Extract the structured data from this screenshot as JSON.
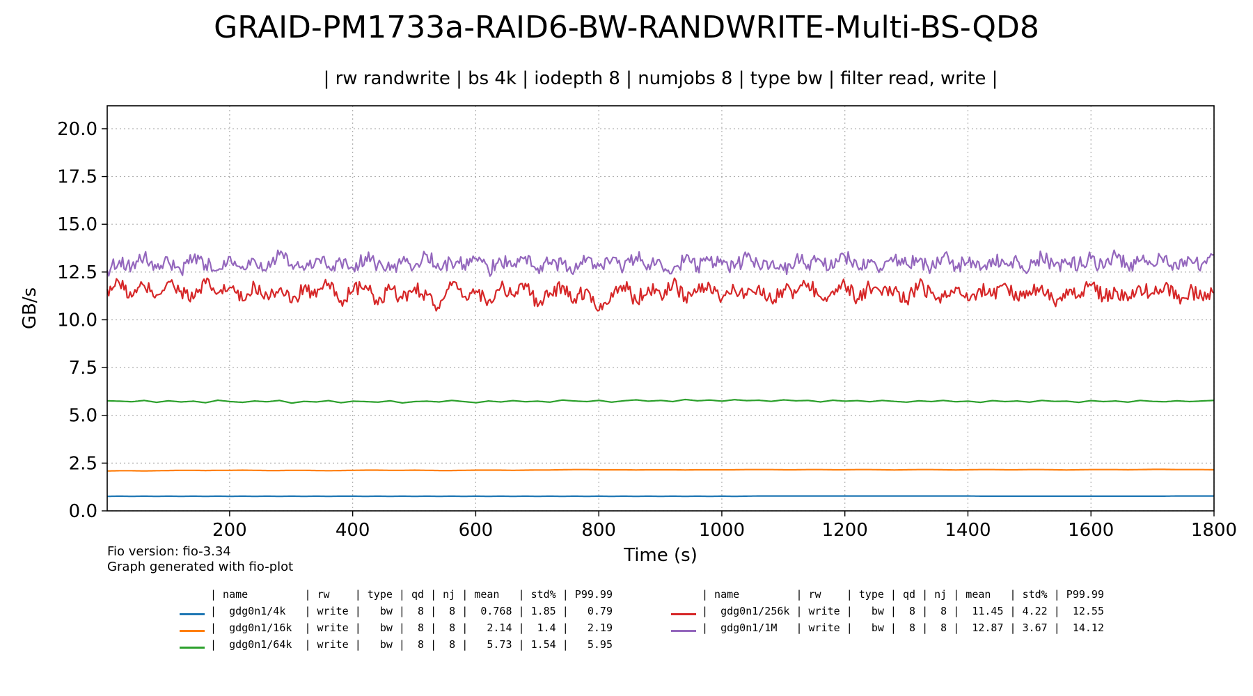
{
  "chart_data": {
    "type": "line",
    "title": "GRAID-PM1733a-RAID6-BW-RANDWRITE-Multi-BS-QD8",
    "subtitle": "| rw randwrite | bs 4k | iodepth 8 | numjobs 8 | type bw | filter read, write |",
    "xlabel": "Time (s)",
    "ylabel": "GB/s",
    "xlim": [
      1,
      1800
    ],
    "ylim": [
      0,
      21.2
    ],
    "xticks": [
      200,
      400,
      600,
      800,
      1000,
      1200,
      1400,
      1600,
      1800
    ],
    "yticks": [
      0.0,
      2.5,
      5.0,
      7.5,
      10.0,
      12.5,
      15.0,
      17.5,
      20.0
    ],
    "grid": true,
    "legend_placement": "bottom",
    "series": [
      {
        "name": "gdg0n1/4k",
        "color": "#1f77b4",
        "mean": 0.768,
        "std_pct": 1.85,
        "p9999": 0.79,
        "values_sampled_every_20s": [
          0.76,
          0.77,
          0.76,
          0.77,
          0.76,
          0.77,
          0.76,
          0.77,
          0.76,
          0.77,
          0.76,
          0.77,
          0.76,
          0.77,
          0.76,
          0.77,
          0.76,
          0.77,
          0.76,
          0.77,
          0.77,
          0.76,
          0.77,
          0.76,
          0.77,
          0.76,
          0.77,
          0.76,
          0.77,
          0.76,
          0.77,
          0.76,
          0.77,
          0.76,
          0.77,
          0.76,
          0.77,
          0.76,
          0.77,
          0.76,
          0.77,
          0.76,
          0.77,
          0.76,
          0.77,
          0.76,
          0.77,
          0.76,
          0.77,
          0.76,
          0.77,
          0.76,
          0.77,
          0.78,
          0.78,
          0.78,
          0.78,
          0.78,
          0.78,
          0.78,
          0.78,
          0.78,
          0.78,
          0.78,
          0.78,
          0.78,
          0.78,
          0.78,
          0.78,
          0.78,
          0.78,
          0.77,
          0.77,
          0.77,
          0.77,
          0.77,
          0.77,
          0.77,
          0.77,
          0.77,
          0.77,
          0.77,
          0.77,
          0.77,
          0.77,
          0.77,
          0.77,
          0.78,
          0.78,
          0.78,
          0.78
        ]
      },
      {
        "name": "gdg0n1/16k",
        "color": "#ff7f0e",
        "mean": 2.14,
        "std_pct": 1.4,
        "p9999": 2.19,
        "values_sampled_every_20s": [
          2.09,
          2.1,
          2.1,
          2.09,
          2.1,
          2.11,
          2.12,
          2.12,
          2.11,
          2.12,
          2.12,
          2.13,
          2.12,
          2.11,
          2.11,
          2.12,
          2.12,
          2.11,
          2.1,
          2.11,
          2.12,
          2.13,
          2.13,
          2.12,
          2.12,
          2.13,
          2.12,
          2.11,
          2.11,
          2.12,
          2.13,
          2.13,
          2.13,
          2.12,
          2.13,
          2.14,
          2.14,
          2.15,
          2.16,
          2.16,
          2.15,
          2.15,
          2.15,
          2.14,
          2.15,
          2.15,
          2.15,
          2.14,
          2.15,
          2.15,
          2.15,
          2.15,
          2.16,
          2.16,
          2.16,
          2.15,
          2.15,
          2.16,
          2.16,
          2.15,
          2.15,
          2.16,
          2.16,
          2.15,
          2.14,
          2.15,
          2.16,
          2.16,
          2.15,
          2.14,
          2.15,
          2.16,
          2.16,
          2.15,
          2.15,
          2.16,
          2.16,
          2.15,
          2.14,
          2.15,
          2.16,
          2.16,
          2.16,
          2.15,
          2.16,
          2.17,
          2.17,
          2.16,
          2.16,
          2.16,
          2.15
        ]
      },
      {
        "name": "gdg0n1/64k",
        "color": "#2ca02c",
        "mean": 5.73,
        "std_pct": 1.54,
        "p9999": 5.95,
        "values_sampled_every_20s": [
          5.76,
          5.74,
          5.71,
          5.78,
          5.68,
          5.76,
          5.7,
          5.74,
          5.66,
          5.79,
          5.72,
          5.68,
          5.75,
          5.71,
          5.78,
          5.64,
          5.73,
          5.7,
          5.77,
          5.66,
          5.74,
          5.72,
          5.69,
          5.76,
          5.65,
          5.72,
          5.74,
          5.7,
          5.78,
          5.72,
          5.66,
          5.75,
          5.7,
          5.77,
          5.71,
          5.74,
          5.69,
          5.8,
          5.75,
          5.72,
          5.78,
          5.69,
          5.76,
          5.81,
          5.74,
          5.78,
          5.72,
          5.83,
          5.76,
          5.8,
          5.74,
          5.82,
          5.77,
          5.79,
          5.73,
          5.81,
          5.76,
          5.78,
          5.7,
          5.79,
          5.74,
          5.77,
          5.71,
          5.78,
          5.73,
          5.69,
          5.76,
          5.72,
          5.78,
          5.71,
          5.74,
          5.68,
          5.77,
          5.72,
          5.75,
          5.69,
          5.78,
          5.73,
          5.74,
          5.68,
          5.77,
          5.72,
          5.75,
          5.69,
          5.78,
          5.73,
          5.71,
          5.76,
          5.72,
          5.75,
          5.78
        ]
      },
      {
        "name": "gdg0n1/256k",
        "color": "#d62728",
        "mean": 11.45,
        "std_pct": 4.22,
        "p9999": 12.55,
        "values_sampled_every_20s": [
          11.6,
          11.9,
          11.2,
          11.8,
          11.3,
          12.0,
          11.5,
          11.1,
          11.9,
          11.4,
          11.7,
          11.0,
          11.8,
          11.3,
          11.6,
          10.9,
          11.7,
          11.2,
          11.9,
          11.0,
          11.5,
          11.8,
          10.8,
          11.6,
          11.1,
          11.7,
          11.3,
          10.6,
          11.8,
          11.2,
          11.5,
          11.0,
          11.7,
          11.3,
          11.9,
          10.7,
          11.4,
          11.8,
          11.1,
          11.6,
          10.5,
          11.4,
          11.8,
          11.0,
          11.7,
          11.3,
          11.9,
          11.2,
          11.5,
          11.8,
          11.1,
          11.6,
          11.3,
          11.8,
          11.0,
          11.6,
          11.4,
          11.9,
          11.2,
          11.5,
          11.8,
          11.1,
          11.7,
          11.3,
          11.6,
          11.0,
          11.8,
          11.4,
          11.2,
          11.7,
          11.0,
          11.6,
          11.3,
          11.9,
          11.1,
          11.5,
          11.8,
          10.9,
          11.6,
          11.3,
          11.8,
          11.2,
          11.5,
          11.0,
          11.7,
          11.4,
          11.8,
          11.1,
          11.5,
          11.2,
          11.4
        ]
      },
      {
        "name": "gdg0n1/1M",
        "color": "#9467bd",
        "mean": 12.87,
        "std_pct": 3.67,
        "p9999": 14.12,
        "values_sampled_every_20s": [
          12.6,
          13.1,
          12.8,
          13.3,
          12.7,
          13.0,
          12.5,
          13.2,
          12.9,
          12.6,
          13.3,
          12.8,
          13.1,
          12.7,
          13.4,
          12.9,
          12.6,
          13.2,
          12.8,
          13.0,
          12.7,
          13.3,
          12.9,
          12.6,
          13.1,
          12.8,
          13.4,
          12.7,
          13.0,
          12.9,
          13.2,
          12.6,
          13.1,
          12.8,
          13.3,
          12.7,
          13.0,
          12.9,
          12.6,
          13.2,
          12.8,
          13.1,
          12.7,
          13.3,
          12.9,
          13.0,
          12.6,
          13.2,
          12.8,
          13.1,
          12.9,
          12.7,
          13.3,
          12.8,
          13.0,
          12.6,
          13.2,
          12.9,
          13.1,
          12.7,
          13.3,
          12.8,
          13.0,
          12.6,
          13.2,
          12.9,
          13.1,
          12.7,
          13.3,
          12.8,
          13.0,
          12.6,
          13.2,
          12.9,
          13.1,
          12.7,
          13.3,
          12.8,
          13.0,
          12.9,
          13.2,
          12.7,
          13.4,
          12.8,
          13.1,
          12.9,
          13.3,
          12.7,
          13.2,
          12.9,
          13.4
        ]
      }
    ]
  },
  "footnotes": {
    "fio_version": "Fio version: fio-3.34",
    "generator": "Graph generated with fio-plot"
  },
  "legend": {
    "header": "| name         | rw    | type | qd | nj | mean   | std% | P99.99",
    "rows": [
      "|  gdg0n1/4k   | write |   bw |  8 |  8 |  0.768 | 1.85 |   0.79",
      "|  gdg0n1/16k  | write |   bw |  8 |  8 |   2.14 |  1.4 |   2.19",
      "|  gdg0n1/64k  | write |   bw |  8 |  8 |   5.73 | 1.54 |   5.95",
      "|  gdg0n1/256k | write |   bw |  8 |  8 |  11.45 | 4.22 |  12.55",
      "|  gdg0n1/1M   | write |   bw |  8 |  8 |  12.87 | 3.67 |  14.12"
    ]
  }
}
